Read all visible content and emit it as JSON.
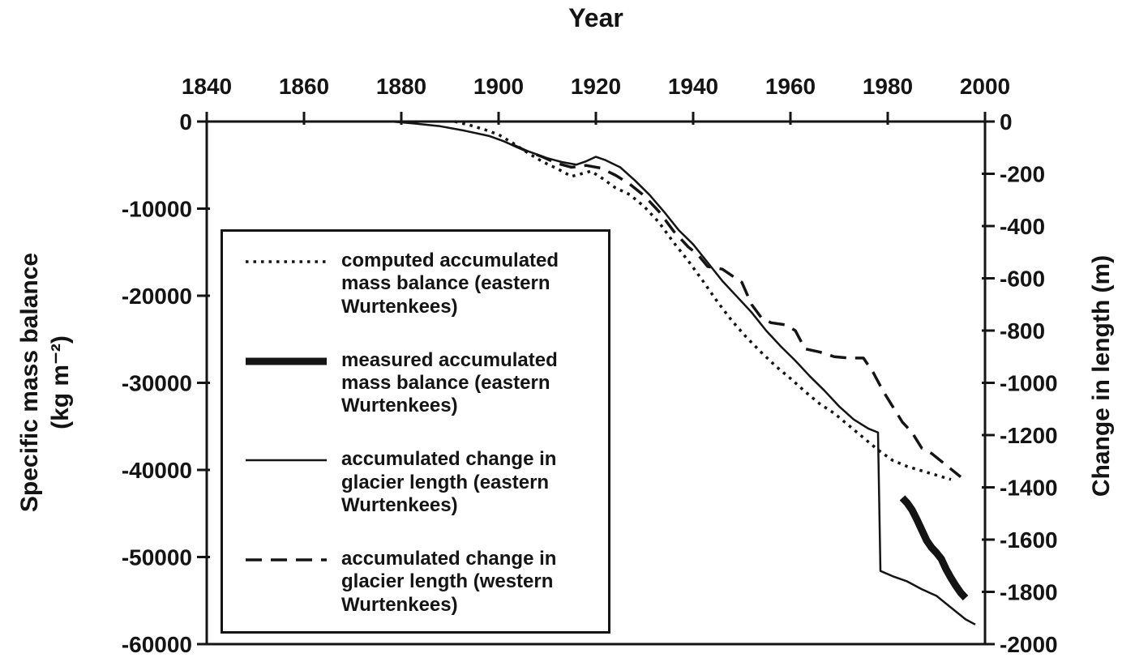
{
  "colors": {
    "ink": "#141414",
    "background": "#ffffff"
  },
  "chart_data": {
    "type": "line",
    "title": "",
    "x_axis": {
      "label": "Year",
      "position": "top",
      "range": [
        1840,
        2000
      ],
      "ticks": [
        1840,
        1860,
        1880,
        1900,
        1920,
        1940,
        1960,
        1980,
        2000
      ]
    },
    "left_y_axis": {
      "label": "Specific mass balance (kg m⁻²)",
      "label_lines": [
        "Specific mass balance",
        "(kg m⁻²)"
      ],
      "range": [
        0,
        -60000
      ],
      "ticks": [
        0,
        -10000,
        -20000,
        -30000,
        -40000,
        -50000,
        -60000
      ]
    },
    "right_y_axis": {
      "label": "Change in length (m)",
      "range": [
        0,
        -2000
      ],
      "ticks": [
        0,
        -200,
        -400,
        -600,
        -800,
        -1000,
        -1200,
        -1400,
        -1600,
        -1800,
        -2000
      ]
    },
    "grid": false,
    "legend": {
      "position": "inside-left",
      "entries": [
        {
          "style": "dotted",
          "label": "computed accumulated mass balance (eastern Wurtenkees)",
          "lines": [
            "computed accumulated",
            "mass balance (eastern",
            "Wurtenkees)"
          ]
        },
        {
          "style": "thick",
          "label": "measured accumulated mass balance (eastern Wurtenkees)",
          "lines": [
            "measured accumulated",
            "mass balance (eastern",
            "Wurtenkees)"
          ]
        },
        {
          "style": "thin",
          "label": "accumulated change in glacier length (eastern Wurtenkees)",
          "lines": [
            "accumulated change in",
            "glacier length (eastern",
            "Wurtenkees)"
          ]
        },
        {
          "style": "dashed",
          "label": "accumulated change in glacier length (western Wurtenkees)",
          "lines": [
            "accumulated change in",
            "glacier length (western",
            "Wurtenkees)"
          ]
        }
      ]
    },
    "series": [
      {
        "name": "computed accumulated mass balance (eastern Wurtenkees)",
        "axis": "left",
        "style": "dotted",
        "points": [
          [
            1891,
            0
          ],
          [
            1894,
            -400
          ],
          [
            1897,
            -900
          ],
          [
            1900,
            -1500
          ],
          [
            1903,
            -2500
          ],
          [
            1906,
            -3600
          ],
          [
            1909,
            -4600
          ],
          [
            1912,
            -5400
          ],
          [
            1915,
            -6300
          ],
          [
            1917,
            -6000
          ],
          [
            1919,
            -5700
          ],
          [
            1921,
            -6400
          ],
          [
            1924,
            -7600
          ],
          [
            1927,
            -8400
          ],
          [
            1930,
            -9800
          ],
          [
            1933,
            -11600
          ],
          [
            1936,
            -13900
          ],
          [
            1939,
            -16000
          ],
          [
            1942,
            -18300
          ],
          [
            1945,
            -20700
          ],
          [
            1948,
            -22900
          ],
          [
            1951,
            -24800
          ],
          [
            1954,
            -26500
          ],
          [
            1957,
            -28100
          ],
          [
            1960,
            -29500
          ],
          [
            1963,
            -31000
          ],
          [
            1966,
            -32400
          ],
          [
            1969,
            -33500
          ],
          [
            1972,
            -34900
          ],
          [
            1975,
            -36300
          ],
          [
            1978,
            -37700
          ],
          [
            1981,
            -38900
          ],
          [
            1984,
            -39600
          ],
          [
            1987,
            -40100
          ],
          [
            1990,
            -40600
          ],
          [
            1993,
            -41100
          ]
        ]
      },
      {
        "name": "measured accumulated mass balance (eastern Wurtenkees)",
        "axis": "left",
        "style": "thick",
        "points": [
          [
            1983,
            -43200
          ],
          [
            1984,
            -43800
          ],
          [
            1985,
            -44600
          ],
          [
            1986,
            -45700
          ],
          [
            1987,
            -46900
          ],
          [
            1988,
            -48100
          ],
          [
            1989,
            -48900
          ],
          [
            1990,
            -49500
          ],
          [
            1991,
            -50200
          ],
          [
            1992,
            -51400
          ],
          [
            1993,
            -52400
          ],
          [
            1994,
            -53300
          ],
          [
            1995,
            -54100
          ],
          [
            1996,
            -54700
          ]
        ]
      },
      {
        "name": "accumulated change in glacier length (eastern Wurtenkees)",
        "axis": "right",
        "style": "thin",
        "points": [
          [
            1878,
            0
          ],
          [
            1883,
            -8
          ],
          [
            1888,
            -18
          ],
          [
            1893,
            -35
          ],
          [
            1898,
            -55
          ],
          [
            1901,
            -75
          ],
          [
            1904,
            -100
          ],
          [
            1907,
            -120
          ],
          [
            1910,
            -140
          ],
          [
            1913,
            -155
          ],
          [
            1916,
            -165
          ],
          [
            1918,
            -152
          ],
          [
            1920,
            -135
          ],
          [
            1922,
            -148
          ],
          [
            1925,
            -175
          ],
          [
            1928,
            -225
          ],
          [
            1931,
            -280
          ],
          [
            1934,
            -345
          ],
          [
            1937,
            -415
          ],
          [
            1940,
            -470
          ],
          [
            1943,
            -540
          ],
          [
            1946,
            -610
          ],
          [
            1949,
            -670
          ],
          [
            1952,
            -730
          ],
          [
            1955,
            -800
          ],
          [
            1958,
            -860
          ],
          [
            1961,
            -915
          ],
          [
            1964,
            -975
          ],
          [
            1967,
            -1030
          ],
          [
            1970,
            -1090
          ],
          [
            1973,
            -1140
          ],
          [
            1976,
            -1175
          ],
          [
            1978,
            -1190
          ],
          [
            1978.5,
            -1720
          ],
          [
            1981,
            -1740
          ],
          [
            1984,
            -1760
          ],
          [
            1987,
            -1790
          ],
          [
            1990,
            -1815
          ],
          [
            1993,
            -1860
          ],
          [
            1996,
            -1905
          ],
          [
            1998,
            -1925
          ]
        ]
      },
      {
        "name": "accumulated change in glacier length (western Wurtenkees)",
        "axis": "right",
        "style": "dashed",
        "points": [
          [
            1903,
            -90
          ],
          [
            1906,
            -115
          ],
          [
            1909,
            -135
          ],
          [
            1912,
            -160
          ],
          [
            1915,
            -175
          ],
          [
            1918,
            -168
          ],
          [
            1921,
            -178
          ],
          [
            1924,
            -205
          ],
          [
            1927,
            -240
          ],
          [
            1930,
            -285
          ],
          [
            1933,
            -345
          ],
          [
            1936,
            -420
          ],
          [
            1939,
            -480
          ],
          [
            1941,
            -510
          ],
          [
            1943,
            -555
          ],
          [
            1946,
            -565
          ],
          [
            1948,
            -590
          ],
          [
            1950,
            -615
          ],
          [
            1952,
            -700
          ],
          [
            1954,
            -750
          ],
          [
            1956,
            -770
          ],
          [
            1959,
            -778
          ],
          [
            1961,
            -800
          ],
          [
            1963,
            -870
          ],
          [
            1966,
            -882
          ],
          [
            1969,
            -900
          ],
          [
            1972,
            -905
          ],
          [
            1975,
            -905
          ],
          [
            1977,
            -960
          ],
          [
            1979,
            -1030
          ],
          [
            1981,
            -1090
          ],
          [
            1983,
            -1150
          ],
          [
            1985,
            -1190
          ],
          [
            1987,
            -1250
          ],
          [
            1989,
            -1270
          ],
          [
            1991,
            -1300
          ],
          [
            1993,
            -1330
          ],
          [
            1995,
            -1360
          ]
        ]
      }
    ]
  }
}
